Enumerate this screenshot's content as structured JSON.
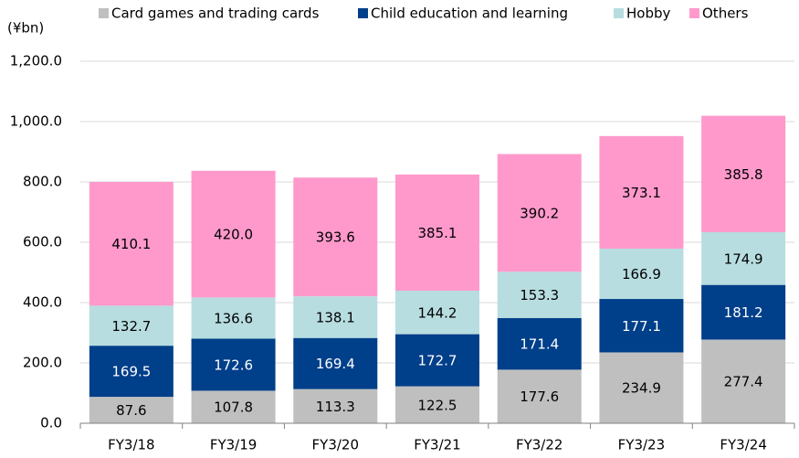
{
  "chart_data": {
    "type": "stacked_bar",
    "y_label": "(¥bn)",
    "categories": [
      "FY3/18",
      "FY3/19",
      "FY3/20",
      "FY3/21",
      "FY3/22",
      "FY3/23",
      "FY3/24"
    ],
    "series": [
      {
        "name": "Card games and trading cards",
        "color": "#bfbfbf",
        "label_color": "#000000",
        "values": [
          87.6,
          107.8,
          113.3,
          122.5,
          177.6,
          234.9,
          277.4
        ],
        "value_labels": [
          "87.6",
          "107.8",
          "113.3",
          "122.5",
          "177.6",
          "234.9",
          "277.4"
        ]
      },
      {
        "name": "Child education and learning",
        "color": "#003f8a",
        "label_color": "#ffffff",
        "values": [
          169.5,
          172.6,
          169.4,
          172.7,
          171.4,
          177.1,
          181.2
        ],
        "value_labels": [
          "169.5",
          "172.6",
          "169.4",
          "172.7",
          "171.4",
          "177.1",
          "181.2"
        ]
      },
      {
        "name": "Hobby",
        "color": "#b7dde0",
        "label_color": "#000000",
        "values": [
          132.7,
          136.6,
          138.1,
          144.2,
          153.3,
          166.9,
          174.9
        ],
        "value_labels": [
          "132.7",
          "136.6",
          "138.1",
          "144.2",
          "153.3",
          "166.9",
          "174.9"
        ]
      },
      {
        "name": "Others",
        "color": "#ff99cc",
        "label_color": "#000000",
        "values": [
          410.1,
          420,
          393.6,
          385.1,
          390.2,
          373.1,
          385.8
        ],
        "value_labels": [
          "410.1",
          "420.0",
          "393.6",
          "385.1",
          "390.2",
          "373.1",
          "385.8"
        ]
      }
    ],
    "ylim": [
      0,
      1200
    ],
    "yticks": [
      {
        "value": 0,
        "label": "0.0"
      },
      {
        "value": 200,
        "label": "200.0"
      },
      {
        "value": 400,
        "label": "400.0"
      },
      {
        "value": 600,
        "label": "600.0"
      },
      {
        "value": 800,
        "label": "800.0"
      },
      {
        "value": 1000,
        "label": "1,000.0"
      },
      {
        "value": 1200,
        "label": "1,200.0"
      }
    ],
    "grid": true,
    "legend": "top"
  }
}
